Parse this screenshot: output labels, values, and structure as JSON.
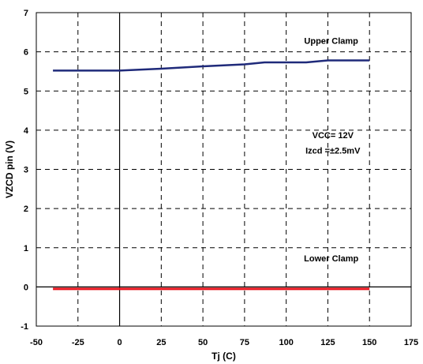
{
  "chart_data": {
    "type": "line",
    "xlabel": "Tj (C)",
    "ylabel": "VZCD pin (V)",
    "xlim": [
      -50,
      175
    ],
    "ylim": [
      -1,
      7
    ],
    "xticks": [
      -50,
      -25,
      0,
      25,
      50,
      75,
      100,
      125,
      150,
      175
    ],
    "yticks": [
      -1,
      0,
      1,
      2,
      3,
      4,
      5,
      6,
      7
    ],
    "xtick_labels": [
      "-50",
      "-25",
      "0",
      "25",
      "50",
      "75",
      "100",
      "125",
      "150",
      "175"
    ],
    "ytick_labels": [
      "-1",
      "0",
      "1",
      "2",
      "3",
      "4",
      "5",
      "6",
      "7"
    ],
    "grid": true,
    "series": [
      {
        "color": "#1f2a7a",
        "x": [
          -40,
          -25,
          0,
          25,
          50,
          75,
          87,
          112,
          125,
          150
        ],
        "y": [
          5.52,
          5.52,
          5.52,
          5.57,
          5.63,
          5.68,
          5.73,
          5.73,
          5.78,
          5.78
        ]
      },
      {
        "color": "#e8141e",
        "x": [
          -40,
          -25,
          0,
          25,
          50,
          75,
          100,
          125,
          150
        ],
        "y": [
          -0.05,
          -0.05,
          -0.05,
          -0.05,
          -0.05,
          -0.05,
          -0.05,
          -0.05,
          -0.05
        ]
      }
    ],
    "annotations": [
      {
        "text": "Upper Clamp",
        "x": 127,
        "y": 6.2
      },
      {
        "text": "Lower Clamp",
        "x": 127,
        "y": 0.65
      },
      {
        "text": "VCC= 12V",
        "x": 128,
        "y": 3.8
      },
      {
        "text": "Izcd =±2.5mV",
        "x": 128,
        "y": 3.4
      }
    ]
  }
}
